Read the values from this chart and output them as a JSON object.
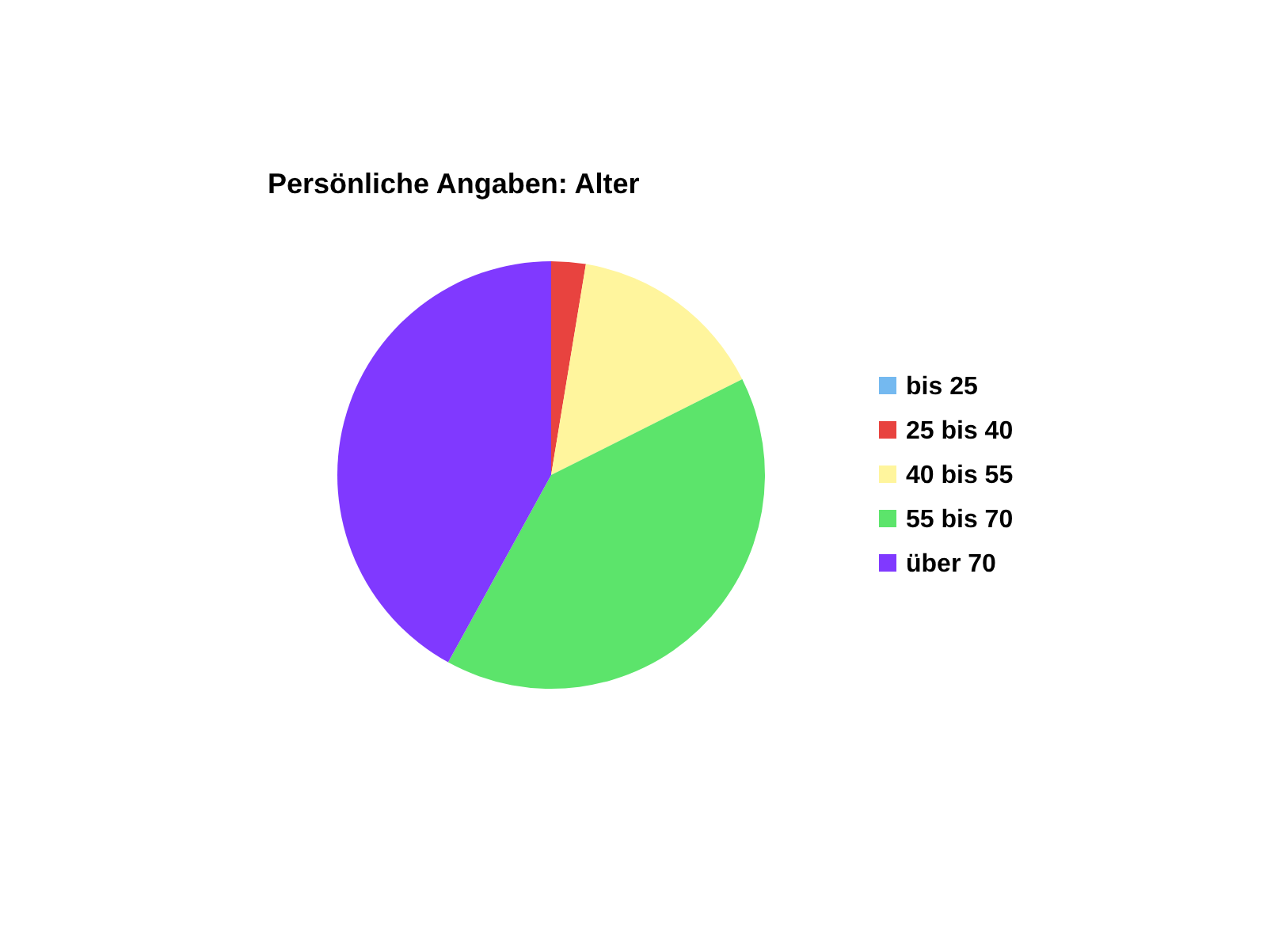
{
  "chart_data": {
    "type": "pie",
    "title": "Persönliche Angaben: Alter",
    "categories": [
      "bis 25",
      "25 bis 40",
      "40 bis 55",
      "55 bis 70",
      "über 70"
    ],
    "values": [
      0,
      2.6,
      15,
      40.4,
      42
    ],
    "colors": [
      "#74b9f0",
      "#e8433f",
      "#fff59d",
      "#5ce46b",
      "#8039ff"
    ],
    "legend": "right"
  }
}
